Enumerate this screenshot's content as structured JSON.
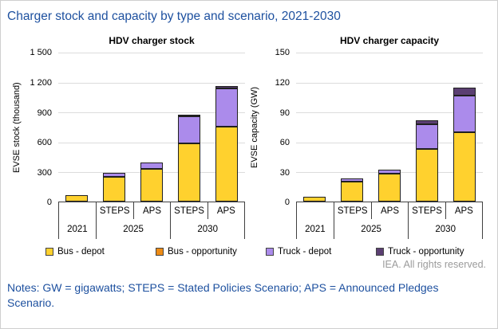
{
  "page_title": "Charger stock and capacity by type and scenario, 2021-2030",
  "notes": "Notes: GW = gigawatts; STEPS = Stated Policies Scenario; APS = Announced Pledges Scenario.",
  "attribution": "IEA. All rights reserved.",
  "colors": {
    "bus_depot": "#FFD12E",
    "bus_opportunity": "#ED8B15",
    "truck_depot": "#AB8BEB",
    "truck_opportunity": "#5B3F72",
    "title_blue": "#1D509F",
    "gridline": "#DCDCDC",
    "axis": "#404040",
    "bar_border": "#202020",
    "attribution_gray": "#9B9B9B"
  },
  "legend": [
    {
      "label": "Bus - depot",
      "color_key": "bus_depot"
    },
    {
      "label": "Bus - opportunity",
      "color_key": "bus_opportunity"
    },
    {
      "label": "Truck - depot",
      "color_key": "truck_depot"
    },
    {
      "label": "Truck - opportunity",
      "color_key": "truck_opportunity"
    }
  ],
  "chart_data": [
    {
      "type": "bar",
      "stacked": true,
      "title": "HDV charger stock",
      "ylabel": "EVSE stock (thousand)",
      "ylim": [
        0,
        1500
      ],
      "grid": true,
      "yticks": [
        {
          "value": 0,
          "label": "0"
        },
        {
          "value": 300,
          "label": "300"
        },
        {
          "value": 600,
          "label": "600"
        },
        {
          "value": 900,
          "label": "900"
        },
        {
          "value": 1200,
          "label": "1 200"
        },
        {
          "value": 1500,
          "label": "1 500"
        }
      ],
      "categories": [
        "2021",
        "2025 STEPS",
        "2025 APS",
        "2030 STEPS",
        "2030 APS"
      ],
      "groups": [
        {
          "year": "2021",
          "scenarios": []
        },
        {
          "year": "2025",
          "scenarios": [
            "STEPS",
            "APS"
          ]
        },
        {
          "year": "2030",
          "scenarios": [
            "STEPS",
            "APS"
          ]
        }
      ],
      "series": [
        {
          "name": "Bus - depot",
          "color_key": "bus_depot",
          "values": [
            65,
            255,
            330,
            585,
            755
          ]
        },
        {
          "name": "Bus - opportunity",
          "color_key": "bus_opportunity",
          "values": [
            0,
            0,
            0,
            0,
            0
          ]
        },
        {
          "name": "Truck - depot",
          "color_key": "truck_depot",
          "values": [
            0,
            40,
            65,
            275,
            385
          ]
        },
        {
          "name": "Truck - opportunity",
          "color_key": "truck_opportunity",
          "values": [
            0,
            0,
            0,
            5,
            25
          ]
        }
      ]
    },
    {
      "type": "bar",
      "stacked": true,
      "title": "HDV charger capacity",
      "ylabel": "EVSE capacity (GW)",
      "ylim": [
        0,
        150
      ],
      "grid": true,
      "yticks": [
        {
          "value": 0,
          "label": "0"
        },
        {
          "value": 30,
          "label": "30"
        },
        {
          "value": 60,
          "label": "60"
        },
        {
          "value": 90,
          "label": "90"
        },
        {
          "value": 120,
          "label": "120"
        },
        {
          "value": 150,
          "label": "150"
        }
      ],
      "categories": [
        "2021",
        "2025 STEPS",
        "2025 APS",
        "2030 STEPS",
        "2030 APS"
      ],
      "groups": [
        {
          "year": "2021",
          "scenarios": []
        },
        {
          "year": "2025",
          "scenarios": [
            "STEPS",
            "APS"
          ]
        },
        {
          "year": "2030",
          "scenarios": [
            "STEPS",
            "APS"
          ]
        }
      ],
      "series": [
        {
          "name": "Bus - depot",
          "color_key": "bus_depot",
          "values": [
            5,
            20.5,
            28,
            53,
            70
          ]
        },
        {
          "name": "Bus - opportunity",
          "color_key": "bus_opportunity",
          "values": [
            0,
            0,
            0,
            0,
            0
          ]
        },
        {
          "name": "Truck - depot",
          "color_key": "truck_depot",
          "values": [
            0,
            3,
            4.5,
            25,
            37
          ]
        },
        {
          "name": "Truck - opportunity",
          "color_key": "truck_opportunity",
          "values": [
            0,
            0,
            0,
            4.5,
            8
          ]
        }
      ]
    }
  ]
}
